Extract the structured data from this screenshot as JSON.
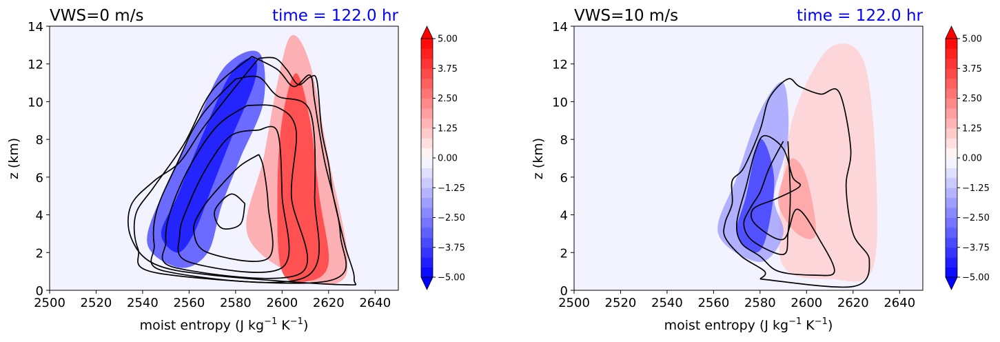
{
  "chart_data": [
    {
      "type": "heatmap",
      "title": "VWS=0 m/s",
      "subtitle": "time = 122.0 hr",
      "subtitle_color": "#0000ff",
      "xlabel": "moist entropy (J kg",
      "xlabel_sup1": "−1",
      "xlabel_mid": " K",
      "xlabel_sup2": "−1",
      "xlabel_end": ")",
      "ylabel": "z (km)",
      "xlim": [
        2500,
        2650
      ],
      "ylim": [
        0,
        14
      ],
      "xticks": [
        "2500",
        "2520",
        "2540",
        "2560",
        "2580",
        "2600",
        "2620",
        "2640"
      ],
      "yticks": [
        "0",
        "2",
        "4",
        "6",
        "8",
        "10",
        "12",
        "14"
      ],
      "colorbar": {
        "range": [
          -5,
          5
        ],
        "ticks": [
          "−5.00",
          "−3.75",
          "−2.50",
          "−1.25",
          "0.00",
          "1.25",
          "2.50",
          "3.75",
          "5.00"
        ],
        "extend": "both",
        "colormap": "bwr"
      },
      "fill_regions": [
        {
          "value": -4.5,
          "points": [
            [
              2548,
              3
            ],
            [
              2555,
              5
            ],
            [
              2565,
              8
            ],
            [
              2578,
              11.5
            ],
            [
              2588,
              12.3
            ],
            [
              2588,
              11
            ],
            [
              2578,
              8
            ],
            [
              2570,
              5.5
            ],
            [
              2562,
              3
            ],
            [
              2555,
              2
            ]
          ]
        },
        {
          "value": -3.0,
          "points": [
            [
              2542,
              2.5
            ],
            [
              2550,
              5.5
            ],
            [
              2562,
              8.5
            ],
            [
              2575,
              11.8
            ],
            [
              2590,
              12.6
            ],
            [
              2592,
              10
            ],
            [
              2582,
              7
            ],
            [
              2574,
              4.5
            ],
            [
              2568,
              2
            ],
            [
              2556,
              1.2
            ]
          ]
        },
        {
          "value": 3.5,
          "points": [
            [
              2600,
              1
            ],
            [
              2598,
              5
            ],
            [
              2600,
              9
            ],
            [
              2606,
              11.5
            ],
            [
              2612,
              9
            ],
            [
              2616,
              5
            ],
            [
              2620,
              1.5
            ],
            [
              2612,
              0.5
            ]
          ]
        },
        {
          "value": 2.0,
          "points": [
            [
              2585,
              3
            ],
            [
              2592,
              7
            ],
            [
              2598,
              11
            ],
            [
              2604,
              13.5
            ],
            [
              2612,
              12
            ],
            [
              2620,
              7
            ],
            [
              2628,
              2
            ],
            [
              2624,
              0.4
            ],
            [
              2605,
              0.8
            ]
          ]
        }
      ],
      "contours": [
        [
          [
            2584,
            4.6
          ],
          [
            2578,
            5.1
          ],
          [
            2571,
            4.2
          ],
          [
            2574,
            3.3
          ],
          [
            2582,
            3.5
          ],
          [
            2584,
            4.6
          ]
        ],
        [
          [
            2590,
            7.2
          ],
          [
            2582,
            6.6
          ],
          [
            2574,
            5.6
          ],
          [
            2566,
            4.4
          ],
          [
            2562,
            3.2
          ],
          [
            2568,
            2.0
          ],
          [
            2594,
            1.7
          ],
          [
            2594,
            4.5
          ],
          [
            2592,
            6.5
          ],
          [
            2590,
            7.2
          ]
        ],
        [
          [
            2590,
            8.5
          ],
          [
            2578,
            8.2
          ],
          [
            2568,
            6.6
          ],
          [
            2560,
            4.6
          ],
          [
            2556,
            3.0
          ],
          [
            2560,
            1.5
          ],
          [
            2600,
            1.2
          ],
          [
            2600,
            5
          ],
          [
            2598,
            8.4
          ],
          [
            2590,
            8.5
          ]
        ],
        [
          [
            2585,
            9.8
          ],
          [
            2572,
            8.7
          ],
          [
            2560,
            6.5
          ],
          [
            2552,
            4.2
          ],
          [
            2550,
            2.6
          ],
          [
            2554,
            1.2
          ],
          [
            2608,
            0.9
          ],
          [
            2604,
            5
          ],
          [
            2606,
            8.5
          ],
          [
            2598,
            9.7
          ],
          [
            2585,
            9.8
          ]
        ],
        [
          [
            2580,
            11.2
          ],
          [
            2565,
            9.2
          ],
          [
            2554,
            6.5
          ],
          [
            2546,
            4.2
          ],
          [
            2545,
            2.4
          ],
          [
            2550,
            1.0
          ],
          [
            2610,
            0.7
          ],
          [
            2614,
            5
          ],
          [
            2612,
            9.5
          ],
          [
            2598,
            10.3
          ],
          [
            2590,
            11.3
          ],
          [
            2580,
            11.2
          ]
        ],
        [
          [
            2587,
            12.4
          ],
          [
            2570,
            10.6
          ],
          [
            2558,
            7.8
          ],
          [
            2545,
            5.5
          ],
          [
            2537,
            4.0
          ],
          [
            2538,
            2.2
          ],
          [
            2547,
            0.9
          ],
          [
            2620,
            0.5
          ],
          [
            2625,
            3
          ],
          [
            2618,
            7
          ],
          [
            2614,
            10
          ],
          [
            2612,
            11.4
          ],
          [
            2605,
            10.8
          ],
          [
            2598,
            11.7
          ],
          [
            2587,
            12.4
          ]
        ],
        [
          [
            2590,
            12.3
          ],
          [
            2580,
            10.8
          ],
          [
            2566,
            8.6
          ],
          [
            2556,
            6.8
          ],
          [
            2545,
            5.8
          ],
          [
            2535,
            4.5
          ],
          [
            2535,
            2.8
          ],
          [
            2545,
            1.4
          ],
          [
            2570,
            0.8
          ],
          [
            2625,
            0.3
          ],
          [
            2631,
            0.6
          ],
          [
            2627,
            2.4
          ],
          [
            2622,
            5
          ],
          [
            2620,
            6.7
          ],
          [
            2617,
            8.5
          ],
          [
            2615,
            11.1
          ],
          [
            2612,
            11.3
          ],
          [
            2607,
            10.9
          ],
          [
            2602,
            11.7
          ],
          [
            2597,
            12.3
          ],
          [
            2590,
            12.3
          ]
        ]
      ]
    },
    {
      "type": "heatmap",
      "title": "VWS=10 m/s",
      "subtitle": "time = 122.0 hr",
      "subtitle_color": "#0000ff",
      "xlabel": "moist entropy (J kg",
      "xlabel_sup1": "−1",
      "xlabel_mid": " K",
      "xlabel_sup2": "−1",
      "xlabel_end": ")",
      "ylabel": "z (km)",
      "xlim": [
        2500,
        2650
      ],
      "ylim": [
        0,
        14
      ],
      "xticks": [
        "2500",
        "2520",
        "2540",
        "2560",
        "2580",
        "2600",
        "2620",
        "2640"
      ],
      "yticks": [
        "0",
        "2",
        "4",
        "6",
        "8",
        "10",
        "12",
        "14"
      ],
      "colorbar": {
        "range": [
          -5,
          5
        ],
        "ticks": [
          "−5.00",
          "−3.75",
          "−2.50",
          "−1.25",
          "0.00",
          "1.25",
          "2.50",
          "3.75",
          "5.00"
        ],
        "extend": "both",
        "colormap": "bwr"
      },
      "fill_regions": [
        {
          "value": -3.5,
          "points": [
            [
              2570,
              3
            ],
            [
              2574,
              5
            ],
            [
              2580,
              8
            ],
            [
              2586,
              6
            ],
            [
              2583,
              3
            ],
            [
              2578,
              2
            ]
          ]
        },
        {
          "value": -2.0,
          "points": [
            [
              2562,
              3
            ],
            [
              2570,
              6
            ],
            [
              2580,
              9.5
            ],
            [
              2590,
              11
            ],
            [
              2592,
              8
            ],
            [
              2586,
              5
            ],
            [
              2590,
              3
            ],
            [
              2580,
              1.5
            ]
          ]
        },
        {
          "value": 2.0,
          "points": [
            [
              2588,
              4.5
            ],
            [
              2596,
              3
            ],
            [
              2604,
              3
            ],
            [
              2600,
              6
            ],
            [
              2594,
              7
            ],
            [
              2590,
              6
            ]
          ]
        },
        {
          "value": 1.0,
          "points": [
            [
              2588,
              3
            ],
            [
              2592,
              8
            ],
            [
              2600,
              11
            ],
            [
              2612,
              13
            ],
            [
              2625,
              12
            ],
            [
              2630,
              6
            ],
            [
              2628,
              1
            ],
            [
              2610,
              0.6
            ],
            [
              2592,
              1
            ]
          ]
        }
      ],
      "contours": [
        [
          [
            2590,
            7.9
          ],
          [
            2584,
            6.5
          ],
          [
            2580,
            5.2
          ],
          [
            2576,
            4.4
          ],
          [
            2573,
            3.5
          ],
          [
            2577,
            2.6
          ],
          [
            2590,
            1.9
          ],
          [
            2592,
            3
          ],
          [
            2593,
            5
          ],
          [
            2592,
            7.9
          ]
        ],
        [
          [
            2586,
            4.8
          ],
          [
            2577,
            4.3
          ],
          [
            2578,
            3.5
          ],
          [
            2590,
            2.7
          ],
          [
            2596,
            4.3
          ],
          [
            2606,
            2.6
          ],
          [
            2612,
            1.0
          ],
          [
            2604,
            0.8
          ],
          [
            2588,
            1.0
          ],
          [
            2580,
            1.8
          ],
          [
            2572,
            2.5
          ],
          [
            2570,
            3.6
          ],
          [
            2574,
            5.5
          ],
          [
            2578,
            7.4
          ],
          [
            2582,
            8.2
          ],
          [
            2590,
            7.5
          ],
          [
            2594,
            6.0
          ],
          [
            2597,
            5.5
          ],
          [
            2586,
            4.8
          ]
        ],
        [
          [
            2580,
            0.6
          ],
          [
            2620,
            0.2
          ],
          [
            2627,
            1.6
          ],
          [
            2620,
            3
          ],
          [
            2617,
            5.5
          ],
          [
            2619,
            7.5
          ],
          [
            2614,
            10.5
          ],
          [
            2606,
            10.4
          ],
          [
            2597,
            10.8
          ],
          [
            2592,
            11.2
          ],
          [
            2584,
            10.2
          ],
          [
            2580,
            8.5
          ],
          [
            2573,
            6.5
          ],
          [
            2568,
            5.8
          ],
          [
            2568,
            4.6
          ],
          [
            2565,
            3.6
          ],
          [
            2565,
            2.8
          ],
          [
            2572,
            1.8
          ],
          [
            2582,
            1.0
          ],
          [
            2580,
            0.6
          ]
        ]
      ]
    }
  ]
}
